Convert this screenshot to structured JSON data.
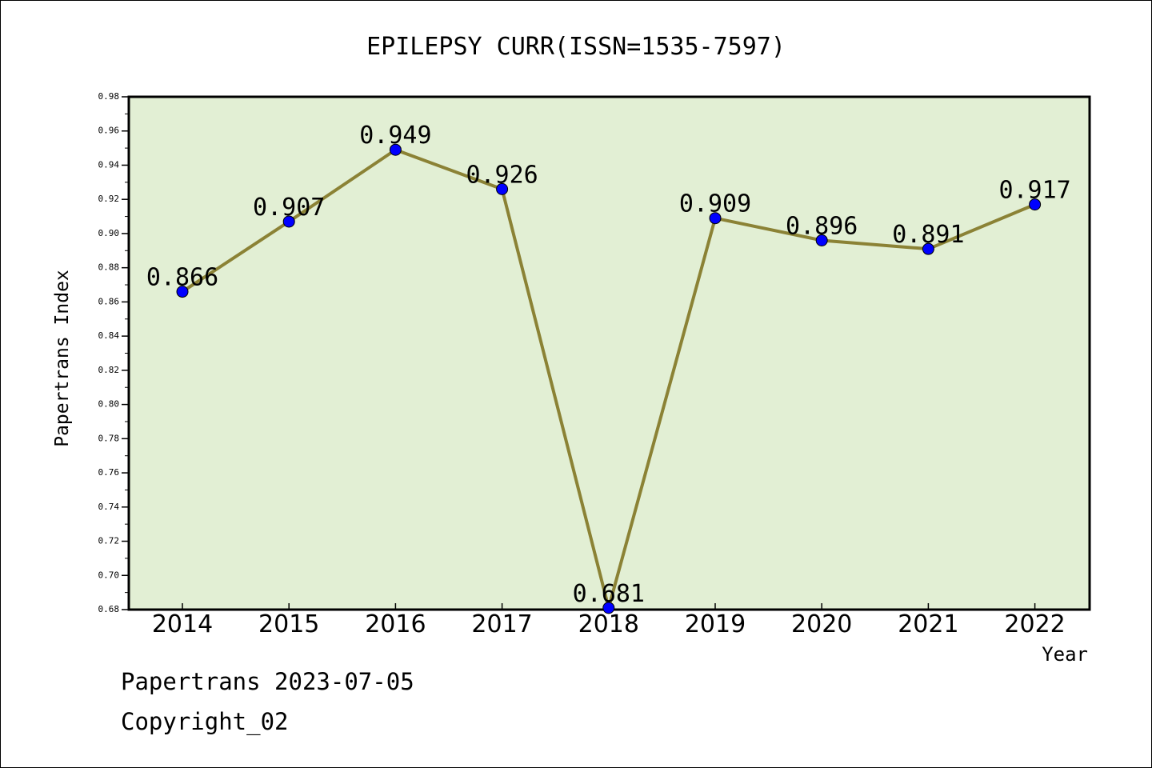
{
  "chart_data": {
    "type": "line",
    "title": "EPILEPSY CURR(ISSN=1535-7597)",
    "xlabel": "Year",
    "ylabel": "Papertrans Index",
    "categories": [
      "2014",
      "2015",
      "2016",
      "2017",
      "2018",
      "2019",
      "2020",
      "2021",
      "2022"
    ],
    "series": [
      {
        "values": [
          0.866,
          0.907,
          0.949,
          0.926,
          0.681,
          0.909,
          0.896,
          0.891,
          0.917
        ]
      }
    ],
    "data_labels": [
      "0.866",
      "0.907",
      "0.949",
      "0.926",
      "0.681",
      "0.909",
      "0.896",
      "0.891",
      "0.917"
    ],
    "ylim": [
      0.68,
      0.98
    ],
    "yticks": [
      "0.68",
      "0.70",
      "0.72",
      "0.74",
      "0.76",
      "0.78",
      "0.80",
      "0.82",
      "0.84",
      "0.86",
      "0.88",
      "0.90",
      "0.92",
      "0.94",
      "0.96",
      "0.98"
    ],
    "grid": false,
    "colors": {
      "plot_background": "#e2efd4",
      "line": "#8b8235",
      "marker": "#0000ff"
    }
  },
  "footer": {
    "line1": "Papertrans 2023-07-05",
    "line2": "Copyright_02"
  }
}
